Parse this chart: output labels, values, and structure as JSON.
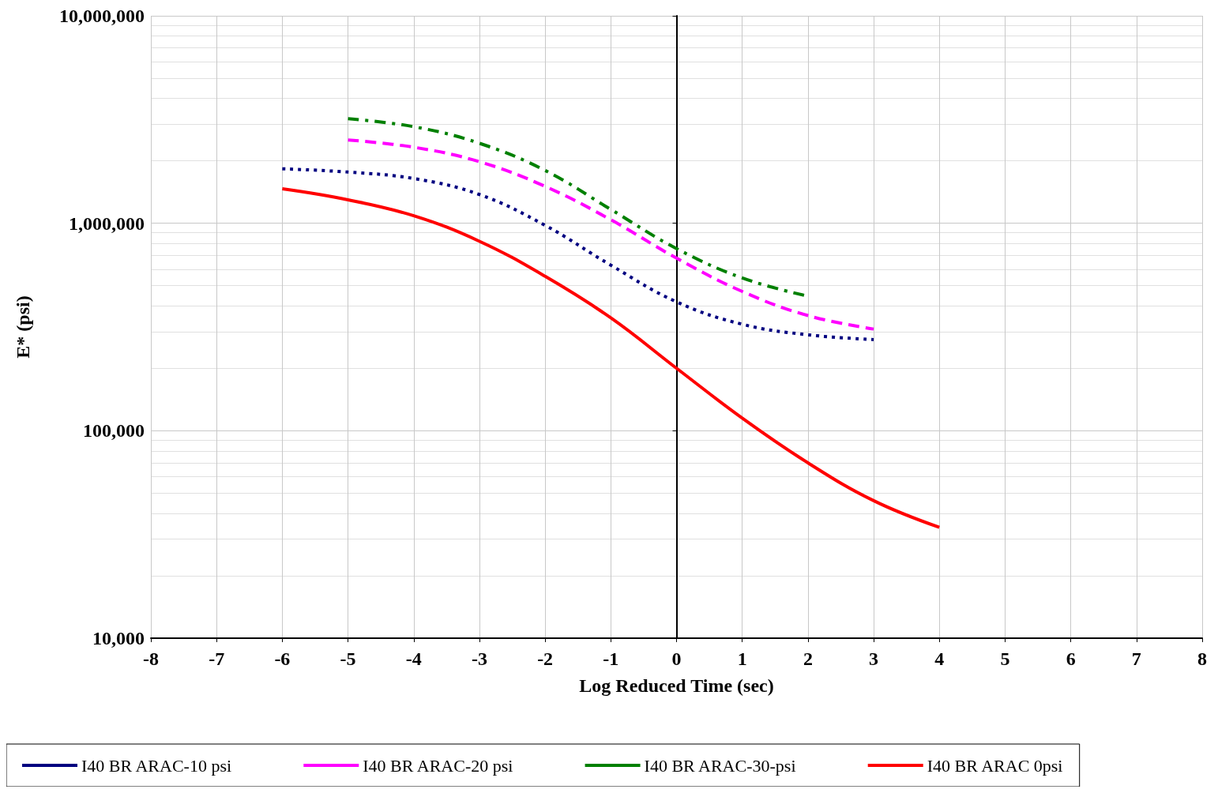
{
  "chart_data": {
    "type": "line",
    "xlabel": "Log Reduced Time (sec)",
    "ylabel": "E* (psi)",
    "log": "y",
    "grid": true,
    "legend": "bottom",
    "marker": "none",
    "xlim": [
      -8,
      8
    ],
    "xticks": [
      -8,
      -7,
      -6,
      -5,
      -4,
      -3,
      -2,
      -1,
      0,
      1,
      2,
      3,
      4,
      5,
      6,
      7,
      8
    ],
    "ylim": [
      10000,
      10000000
    ],
    "yticks": [
      {
        "value": 10000,
        "label": "10,000"
      },
      {
        "value": 100000,
        "label": "100,000"
      },
      {
        "value": 1000000,
        "label": "1,000,000"
      },
      {
        "value": 10000000,
        "label": "10,000,000"
      }
    ],
    "x": [
      -6,
      -5,
      -4,
      -3,
      -2,
      -1,
      0,
      1,
      2,
      3,
      4
    ],
    "series": [
      {
        "name": "I40 BR ARAC-10 psi",
        "color": "#000080",
        "line_style": "dotted",
        "values": [
          1830000,
          1765000,
          1643000,
          1376000,
          977000,
          628000,
          418000,
          326000,
          290000,
          275000,
          null
        ]
      },
      {
        "name": "I40 BR ARAC-20 psi",
        "color": "#ff00ff",
        "line_style": "dashed",
        "values": [
          null,
          2520000,
          2325000,
          1980000,
          1506000,
          1040000,
          679000,
          469000,
          359000,
          309000,
          null
        ]
      },
      {
        "name": "I40 BR ARAC-30-psi",
        "color": "#008000",
        "line_style": "dashdot",
        "values": [
          null,
          3190000,
          2920000,
          2430000,
          1797000,
          1166000,
          755000,
          545000,
          445000,
          null,
          null
        ]
      },
      {
        "name": "I40 BR ARAC 0psi",
        "color": "#ff0000",
        "line_style": "solid",
        "values": [
          1466000,
          1297000,
          1087000,
          819000,
          555000,
          350000,
          200000,
          115000,
          70000,
          46000,
          34200
        ]
      }
    ]
  }
}
